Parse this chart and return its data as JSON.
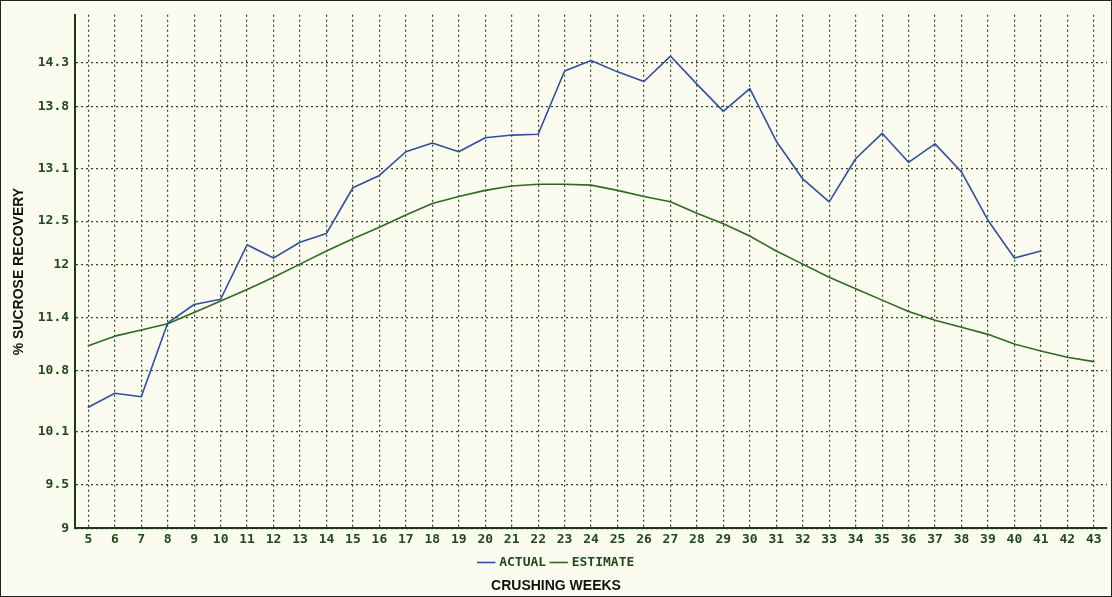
{
  "chart_data": {
    "type": "line",
    "xlabel": "CRUSHING WEEKS",
    "ylabel": "% SUCROSE RECOVERY",
    "categories": [
      "5",
      "6",
      "7",
      "8",
      "9",
      "10",
      "11",
      "12",
      "13",
      "14",
      "15",
      "16",
      "17",
      "18",
      "19",
      "20",
      "21",
      "22",
      "23",
      "24",
      "25",
      "26",
      "27",
      "28",
      "29",
      "30",
      "31",
      "32",
      "33",
      "34",
      "35",
      "36",
      "37",
      "38",
      "39",
      "40",
      "41",
      "42",
      "43"
    ],
    "series": [
      {
        "name": "ACTUAL",
        "color": "#2f4f9f",
        "values": [
          10.38,
          10.54,
          10.5,
          11.34,
          11.55,
          11.61,
          12.23,
          12.08,
          12.26,
          12.36,
          12.88,
          13.02,
          13.29,
          13.39,
          13.29,
          13.45,
          13.48,
          13.49,
          14.21,
          14.33,
          14.2,
          14.09,
          14.38,
          14.06,
          13.75,
          14.01,
          13.41,
          12.98,
          12.72,
          13.21,
          13.5,
          13.17,
          13.38,
          13.06,
          12.51,
          12.08,
          12.16,
          null,
          null
        ]
      },
      {
        "name": "ESTIMATE",
        "color": "#2e6b1f",
        "values": [
          11.08,
          11.19,
          11.26,
          11.33,
          11.46,
          11.59,
          11.72,
          11.86,
          12.01,
          12.16,
          12.3,
          12.43,
          12.57,
          12.7,
          12.78,
          12.85,
          12.9,
          12.92,
          12.92,
          12.91,
          12.85,
          12.78,
          12.72,
          12.59,
          12.47,
          12.33,
          12.16,
          12.01,
          11.86,
          11.73,
          11.6,
          11.47,
          11.37,
          11.29,
          11.21,
          11.1,
          11.02,
          10.95,
          10.9
        ]
      }
    ],
    "ylim": [
      9,
      14.85
    ],
    "yticks": [
      9,
      9.5,
      10.1,
      10.8,
      11.4,
      12,
      12.5,
      13.1,
      13.8,
      14.3
    ],
    "grid": true,
    "legend": "bottom",
    "marker": "none",
    "line_style": "solid"
  }
}
